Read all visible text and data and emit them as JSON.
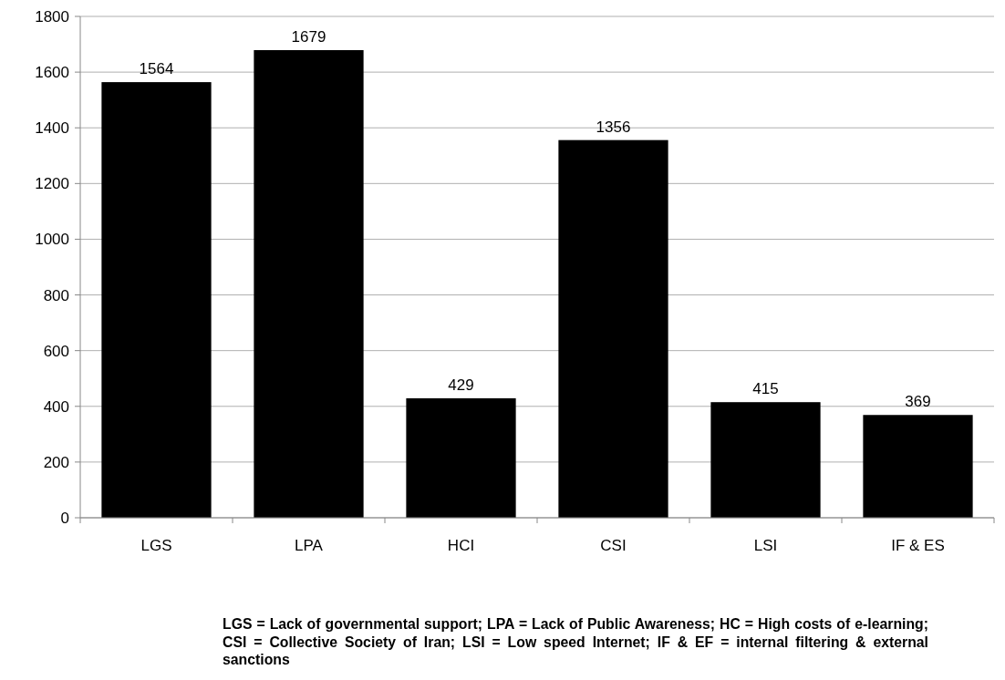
{
  "chart_data": {
    "type": "bar",
    "categories": [
      "LGS",
      "LPA",
      "HCI",
      "CSI",
      "LSI",
      "IF & ES"
    ],
    "values": [
      1564,
      1679,
      429,
      1356,
      415,
      369
    ],
    "color": "#000000",
    "ylim": [
      0,
      1800
    ],
    "yticks": [
      0,
      200,
      400,
      600,
      800,
      1000,
      1200,
      1400,
      1600,
      1800
    ],
    "grid": "y",
    "data_labels": true,
    "annotations": [
      "LGS = Lack of governmental support; LPA = Lack of Public Awareness; HC = High costs of e-learning; CSI = Collective Society of Iran; LSI = Low speed Internet; IF & EF = internal filtering & external sanctions"
    ]
  }
}
